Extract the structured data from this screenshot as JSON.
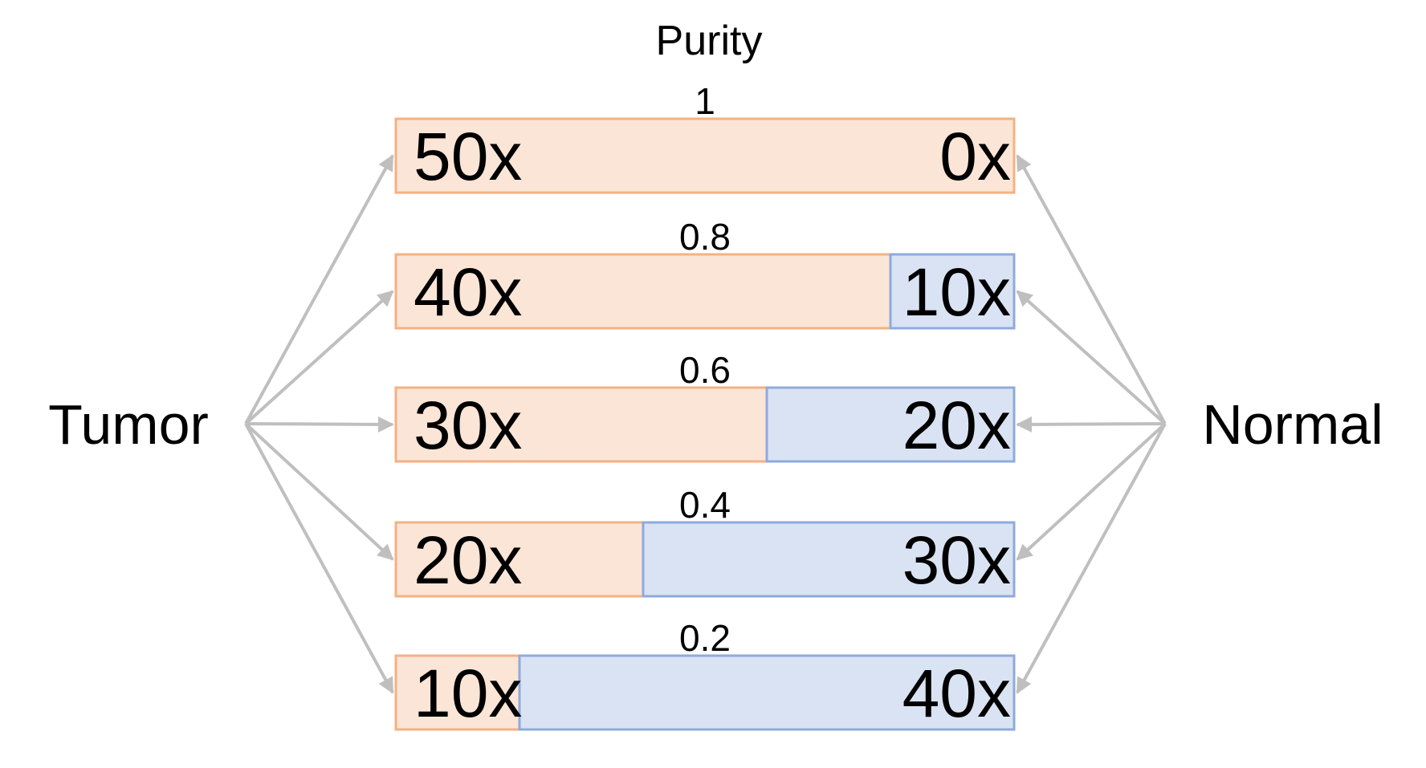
{
  "title": "Purity",
  "left_label": "Tumor",
  "right_label": "Normal",
  "colors": {
    "tumor_fill": "#fbe5d6",
    "tumor_stroke": "#f4b183",
    "normal_fill": "#dae3f3",
    "normal_stroke": "#8faadc",
    "arrow": "#bfbfbf",
    "text": "#000000"
  },
  "rows": [
    {
      "purity": "1",
      "tumor_coverage": 50,
      "normal_coverage": 0,
      "tumor_label": "50x",
      "normal_label": "0x"
    },
    {
      "purity": "0.8",
      "tumor_coverage": 40,
      "normal_coverage": 10,
      "tumor_label": "40x",
      "normal_label": "10x"
    },
    {
      "purity": "0.6",
      "tumor_coverage": 30,
      "normal_coverage": 20,
      "tumor_label": "30x",
      "normal_label": "20x"
    },
    {
      "purity": "0.4",
      "tumor_coverage": 20,
      "normal_coverage": 30,
      "tumor_label": "20x",
      "normal_label": "30x"
    },
    {
      "purity": "0.2",
      "tumor_coverage": 10,
      "normal_coverage": 40,
      "tumor_label": "10x",
      "normal_label": "40x"
    }
  ]
}
